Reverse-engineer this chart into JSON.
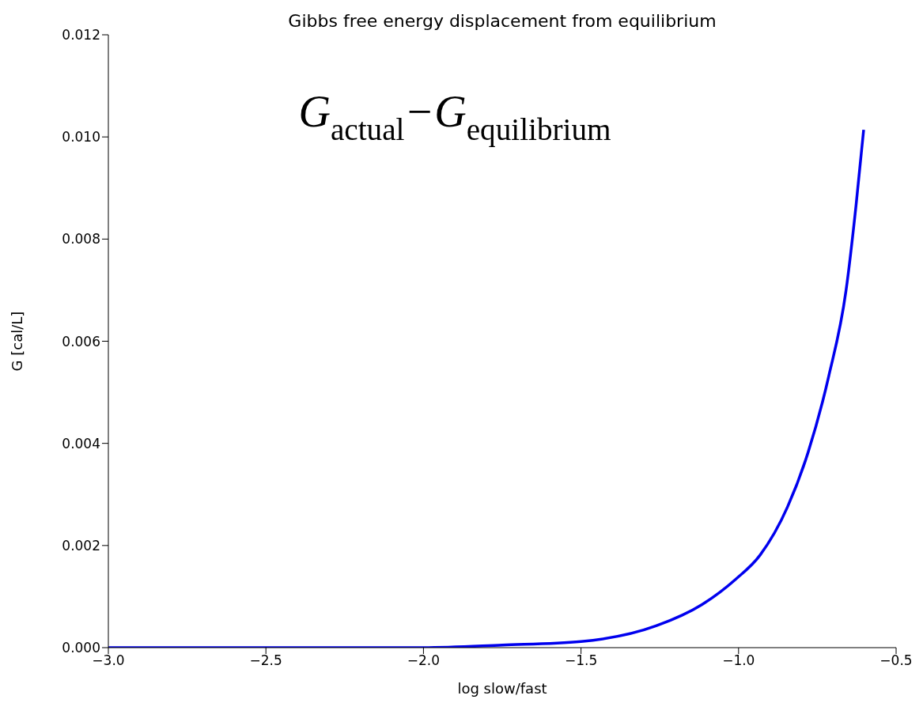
{
  "chart_data": {
    "type": "line",
    "title": "Gibbs free energy displacement from equilibrium",
    "xlabel": "log slow/fast",
    "ylabel": "G [cal/L]",
    "annotations": [
      "G$_{actual}$−G$_{equilibrium}$"
    ],
    "x": [
      -3,
      -2.5,
      -2,
      -1.75,
      -1.5,
      -1.26,
      -1.117,
      -1.009,
      -0.932,
      -0.845,
      -0.779,
      -0.714,
      -0.659,
      -0.627,
      -0.603
    ],
    "series": [
      {
        "color": "#0000ee",
        "values": [
          0,
          0,
          0,
          5e-05,
          0.00012,
          0.00043,
          0.00084,
          0.00134,
          0.00181,
          0.00275,
          0.00383,
          0.00531,
          0.00699,
          0.00867,
          0.01014
        ]
      }
    ],
    "xlim": [
      -3,
      -0.5
    ],
    "xticks": [
      {
        "value": -3,
        "label": "−3.0"
      },
      {
        "value": -2.5,
        "label": "−2.5"
      },
      {
        "value": -2,
        "label": "−2.0"
      },
      {
        "value": -1.5,
        "label": "−1.5"
      },
      {
        "value": -1,
        "label": "−1.0"
      },
      {
        "value": -0.5,
        "label": "−0.5"
      }
    ],
    "ylim": [
      0,
      0.012
    ],
    "yticks": [
      {
        "value": 0,
        "label": "0.000"
      },
      {
        "value": 0.002,
        "label": "0.002"
      },
      {
        "value": 0.004,
        "label": "0.004"
      },
      {
        "value": 0.006,
        "label": "0.006"
      },
      {
        "value": 0.008,
        "label": "0.008"
      },
      {
        "value": 0.01,
        "label": "0.010"
      },
      {
        "value": 0.012,
        "label": "0.012"
      }
    ],
    "grid": false,
    "legend": false,
    "marker": "none",
    "line_style": "solid"
  }
}
